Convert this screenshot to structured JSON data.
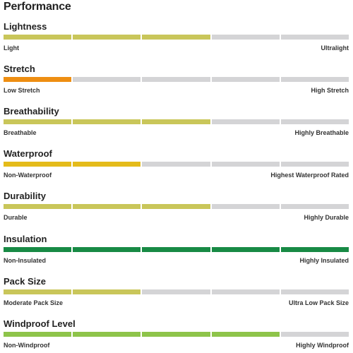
{
  "header": {
    "title": "Performance"
  },
  "metrics": [
    {
      "name": "Lightness",
      "low": "Light",
      "high": "Ultralight",
      "level": 3,
      "color": "#c9c65a"
    },
    {
      "name": "Stretch",
      "low": "Low Stretch",
      "high": "High Stretch",
      "level": 1,
      "color": "#ee8e12"
    },
    {
      "name": "Breathability",
      "low": "Breathable",
      "high": "Highly Breathable",
      "level": 3,
      "color": "#c9c65a"
    },
    {
      "name": "Waterproof",
      "low": "Non-Waterproof",
      "high": "Highest Waterproof Rated",
      "level": 2,
      "color": "#e4bb1a"
    },
    {
      "name": "Durability",
      "low": "Durable",
      "high": "Highly Durable",
      "level": 3,
      "color": "#c9c65a"
    },
    {
      "name": "Insulation",
      "low": "Non-Insulated",
      "high": "Highly Insulated",
      "level": 5,
      "color": "#188a45"
    },
    {
      "name": "Pack Size",
      "low": "Moderate Pack Size",
      "high": "Ultra Low Pack Size",
      "level": 2,
      "color": "#c9c65a"
    },
    {
      "name": "Windproof Level",
      "low": "Non-Windproof",
      "high": "Highly Windproof",
      "level": 4,
      "color": "#8ec44a"
    }
  ],
  "segments_total": 5,
  "empty_color": "#d4d4d6"
}
